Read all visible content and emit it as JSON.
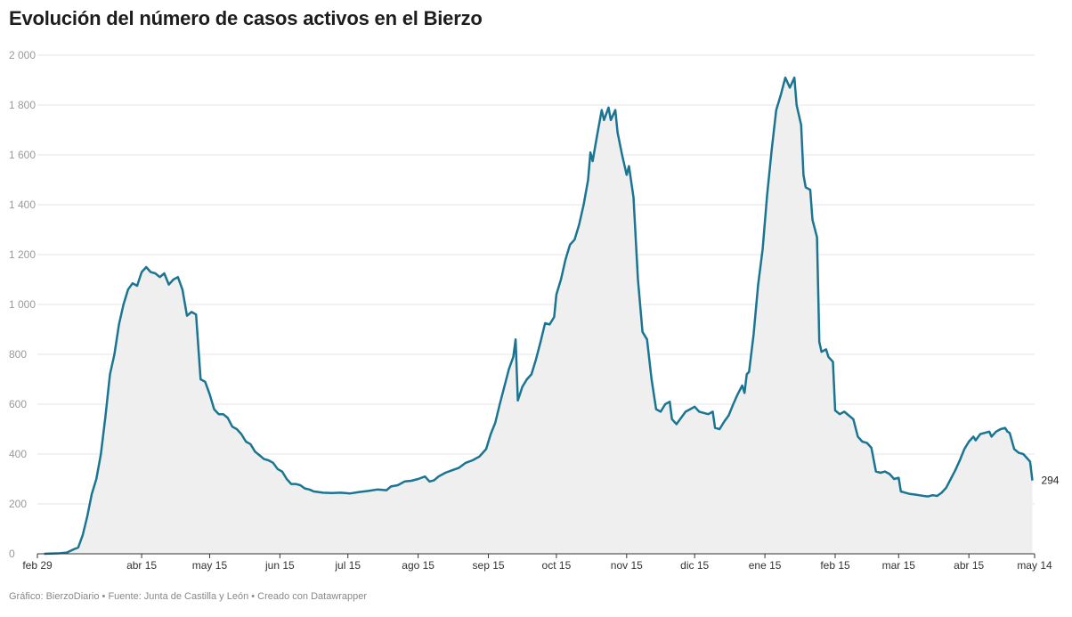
{
  "header": {
    "title": "Evolución del número de casos activos en el Bierzo"
  },
  "footer": {
    "text": "Gráfico: BierzoDiario • Fuente: Junta de Castilla y León • Creado con Datawrapper"
  },
  "colors": {
    "line": "#1a7592",
    "area": "#efefef",
    "grid": "#e4e4e4",
    "axis": "#333333"
  },
  "chart_data": {
    "type": "area",
    "title": "Evolución del número de casos activos en el Bierzo",
    "xlabel": "",
    "ylabel": "",
    "ylim": [
      0,
      2000
    ],
    "xlim": [
      "2020-02-29",
      "2021-05-14"
    ],
    "y_ticks": [
      0,
      200,
      400,
      600,
      800,
      1000,
      1200,
      1400,
      1600,
      1800,
      2000
    ],
    "y_tick_labels": [
      "0",
      "200",
      "400",
      "600",
      "800",
      "1 000",
      "1 200",
      "1 400",
      "1 600",
      "1 800",
      "2 000"
    ],
    "x_ticks": [
      "2020-02-29",
      "2020-04-15",
      "2020-05-15",
      "2020-06-15",
      "2020-07-15",
      "2020-08-15",
      "2020-09-15",
      "2020-10-15",
      "2020-11-15",
      "2020-12-15",
      "2021-01-15",
      "2021-02-15",
      "2021-03-15",
      "2021-04-15",
      "2021-05-14"
    ],
    "x_tick_labels": [
      "feb 29",
      "abr 15",
      "may 15",
      "jun 15",
      "jul 15",
      "ago 15",
      "sep 15",
      "oct 15",
      "nov 15",
      "dic 15",
      "ene 15",
      "feb 15",
      "mar 15",
      "abr 15",
      "may 14"
    ],
    "grid": true,
    "end_label": "294",
    "series": [
      {
        "points": [
          [
            "2020-03-03",
            0
          ],
          [
            "2020-03-10",
            2
          ],
          [
            "2020-03-13",
            5
          ],
          [
            "2020-03-16",
            18
          ],
          [
            "2020-03-18",
            25
          ],
          [
            "2020-03-20",
            75
          ],
          [
            "2020-03-22",
            150
          ],
          [
            "2020-03-24",
            240
          ],
          [
            "2020-03-26",
            300
          ],
          [
            "2020-03-28",
            400
          ],
          [
            "2020-03-30",
            550
          ],
          [
            "2020-04-01",
            720
          ],
          [
            "2020-04-03",
            800
          ],
          [
            "2020-04-05",
            920
          ],
          [
            "2020-04-07",
            1000
          ],
          [
            "2020-04-09",
            1060
          ],
          [
            "2020-04-11",
            1085
          ],
          [
            "2020-04-13",
            1075
          ],
          [
            "2020-04-15",
            1130
          ],
          [
            "2020-04-17",
            1150
          ],
          [
            "2020-04-19",
            1130
          ],
          [
            "2020-04-21",
            1125
          ],
          [
            "2020-04-23",
            1110
          ],
          [
            "2020-04-25",
            1125
          ],
          [
            "2020-04-27",
            1080
          ],
          [
            "2020-04-29",
            1100
          ],
          [
            "2020-05-01",
            1110
          ],
          [
            "2020-05-03",
            1060
          ],
          [
            "2020-05-05",
            955
          ],
          [
            "2020-05-07",
            970
          ],
          [
            "2020-05-09",
            960
          ],
          [
            "2020-05-11",
            700
          ],
          [
            "2020-05-13",
            690
          ],
          [
            "2020-05-15",
            640
          ],
          [
            "2020-05-17",
            580
          ],
          [
            "2020-05-19",
            560
          ],
          [
            "2020-05-21",
            560
          ],
          [
            "2020-05-23",
            545
          ],
          [
            "2020-05-25",
            510
          ],
          [
            "2020-05-27",
            500
          ],
          [
            "2020-05-29",
            480
          ],
          [
            "2020-05-31",
            450
          ],
          [
            "2020-06-02",
            440
          ],
          [
            "2020-06-04",
            410
          ],
          [
            "2020-06-06",
            395
          ],
          [
            "2020-06-08",
            380
          ],
          [
            "2020-06-10",
            375
          ],
          [
            "2020-06-12",
            365
          ],
          [
            "2020-06-14",
            340
          ],
          [
            "2020-06-16",
            330
          ],
          [
            "2020-06-18",
            300
          ],
          [
            "2020-06-20",
            280
          ],
          [
            "2020-06-22",
            280
          ],
          [
            "2020-06-24",
            275
          ],
          [
            "2020-06-26",
            262
          ],
          [
            "2020-06-28",
            258
          ],
          [
            "2020-06-30",
            250
          ],
          [
            "2020-07-02",
            248
          ],
          [
            "2020-07-04",
            245
          ],
          [
            "2020-07-08",
            244
          ],
          [
            "2020-07-12",
            245
          ],
          [
            "2020-07-16",
            242
          ],
          [
            "2020-07-20",
            248
          ],
          [
            "2020-07-24",
            252
          ],
          [
            "2020-07-28",
            258
          ],
          [
            "2020-08-01",
            255
          ],
          [
            "2020-08-03",
            270
          ],
          [
            "2020-08-06",
            275
          ],
          [
            "2020-08-09",
            290
          ],
          [
            "2020-08-12",
            293
          ],
          [
            "2020-08-15",
            300
          ],
          [
            "2020-08-18",
            310
          ],
          [
            "2020-08-20",
            290
          ],
          [
            "2020-08-22",
            295
          ],
          [
            "2020-08-24",
            310
          ],
          [
            "2020-08-27",
            325
          ],
          [
            "2020-08-30",
            335
          ],
          [
            "2020-09-02",
            345
          ],
          [
            "2020-09-05",
            365
          ],
          [
            "2020-09-08",
            375
          ],
          [
            "2020-09-11",
            390
          ],
          [
            "2020-09-14",
            420
          ],
          [
            "2020-09-16",
            480
          ],
          [
            "2020-09-18",
            525
          ],
          [
            "2020-09-20",
            600
          ],
          [
            "2020-09-22",
            670
          ],
          [
            "2020-09-24",
            740
          ],
          [
            "2020-09-26",
            790
          ],
          [
            "2020-09-27",
            860
          ],
          [
            "2020-09-28",
            615
          ],
          [
            "2020-09-30",
            670
          ],
          [
            "2020-10-02",
            700
          ],
          [
            "2020-10-04",
            720
          ],
          [
            "2020-10-06",
            780
          ],
          [
            "2020-10-08",
            850
          ],
          [
            "2020-10-10",
            925
          ],
          [
            "2020-10-12",
            920
          ],
          [
            "2020-10-14",
            950
          ],
          [
            "2020-10-15",
            1040
          ],
          [
            "2020-10-17",
            1100
          ],
          [
            "2020-10-19",
            1180
          ],
          [
            "2020-10-21",
            1240
          ],
          [
            "2020-10-23",
            1260
          ],
          [
            "2020-10-25",
            1320
          ],
          [
            "2020-10-27",
            1400
          ],
          [
            "2020-10-29",
            1500
          ],
          [
            "2020-10-30",
            1610
          ],
          [
            "2020-10-31",
            1575
          ],
          [
            "2020-11-02",
            1680
          ],
          [
            "2020-11-04",
            1780
          ],
          [
            "2020-11-05",
            1740
          ],
          [
            "2020-11-07",
            1790
          ],
          [
            "2020-11-08",
            1740
          ],
          [
            "2020-11-10",
            1780
          ],
          [
            "2020-11-11",
            1690
          ],
          [
            "2020-11-13",
            1600
          ],
          [
            "2020-11-15",
            1520
          ],
          [
            "2020-11-16",
            1555
          ],
          [
            "2020-11-18",
            1430
          ],
          [
            "2020-11-20",
            1100
          ],
          [
            "2020-11-22",
            890
          ],
          [
            "2020-11-24",
            860
          ],
          [
            "2020-11-26",
            700
          ],
          [
            "2020-11-28",
            580
          ],
          [
            "2020-11-30",
            570
          ],
          [
            "2020-12-02",
            600
          ],
          [
            "2020-12-04",
            610
          ],
          [
            "2020-12-05",
            540
          ],
          [
            "2020-12-07",
            520
          ],
          [
            "2020-12-09",
            545
          ],
          [
            "2020-12-11",
            570
          ],
          [
            "2020-12-13",
            580
          ],
          [
            "2020-12-15",
            590
          ],
          [
            "2020-12-17",
            570
          ],
          [
            "2020-12-19",
            565
          ],
          [
            "2020-12-21",
            560
          ],
          [
            "2020-12-23",
            570
          ],
          [
            "2020-12-24",
            505
          ],
          [
            "2020-12-26",
            500
          ],
          [
            "2020-12-28",
            530
          ],
          [
            "2020-12-30",
            555
          ],
          [
            "2021-01-01",
            600
          ],
          [
            "2021-01-03",
            640
          ],
          [
            "2021-01-05",
            675
          ],
          [
            "2021-01-06",
            645
          ],
          [
            "2021-01-07",
            720
          ],
          [
            "2021-01-08",
            730
          ],
          [
            "2021-01-10",
            880
          ],
          [
            "2021-01-12",
            1080
          ],
          [
            "2021-01-14",
            1220
          ],
          [
            "2021-01-16",
            1440
          ],
          [
            "2021-01-18",
            1620
          ],
          [
            "2021-01-20",
            1780
          ],
          [
            "2021-01-22",
            1840
          ],
          [
            "2021-01-24",
            1910
          ],
          [
            "2021-01-26",
            1870
          ],
          [
            "2021-01-28",
            1910
          ],
          [
            "2021-01-29",
            1800
          ],
          [
            "2021-01-31",
            1720
          ],
          [
            "2021-02-01",
            1520
          ],
          [
            "2021-02-02",
            1470
          ],
          [
            "2021-02-04",
            1460
          ],
          [
            "2021-02-05",
            1340
          ],
          [
            "2021-02-07",
            1270
          ],
          [
            "2021-02-08",
            850
          ],
          [
            "2021-02-09",
            810
          ],
          [
            "2021-02-11",
            820
          ],
          [
            "2021-02-12",
            790
          ],
          [
            "2021-02-14",
            770
          ],
          [
            "2021-02-15",
            575
          ],
          [
            "2021-02-17",
            560
          ],
          [
            "2021-02-19",
            570
          ],
          [
            "2021-02-21",
            555
          ],
          [
            "2021-02-23",
            540
          ],
          [
            "2021-02-25",
            470
          ],
          [
            "2021-02-27",
            450
          ],
          [
            "2021-03-01",
            445
          ],
          [
            "2021-03-03",
            425
          ],
          [
            "2021-03-05",
            330
          ],
          [
            "2021-03-07",
            325
          ],
          [
            "2021-03-09",
            330
          ],
          [
            "2021-03-11",
            320
          ],
          [
            "2021-03-13",
            300
          ],
          [
            "2021-03-15",
            305
          ],
          [
            "2021-03-16",
            250
          ],
          [
            "2021-03-18",
            245
          ],
          [
            "2021-03-20",
            240
          ],
          [
            "2021-03-22",
            238
          ],
          [
            "2021-03-24",
            235
          ],
          [
            "2021-03-26",
            232
          ],
          [
            "2021-03-28",
            230
          ],
          [
            "2021-03-30",
            235
          ],
          [
            "2021-04-01",
            232
          ],
          [
            "2021-04-03",
            245
          ],
          [
            "2021-04-05",
            265
          ],
          [
            "2021-04-07",
            300
          ],
          [
            "2021-04-09",
            335
          ],
          [
            "2021-04-11",
            375
          ],
          [
            "2021-04-13",
            420
          ],
          [
            "2021-04-15",
            450
          ],
          [
            "2021-04-17",
            470
          ],
          [
            "2021-04-18",
            455
          ],
          [
            "2021-04-20",
            480
          ],
          [
            "2021-04-22",
            485
          ],
          [
            "2021-04-24",
            490
          ],
          [
            "2021-04-25",
            470
          ],
          [
            "2021-04-27",
            490
          ],
          [
            "2021-04-29",
            500
          ],
          [
            "2021-05-01",
            505
          ],
          [
            "2021-05-02",
            490
          ],
          [
            "2021-05-03",
            485
          ],
          [
            "2021-05-05",
            420
          ],
          [
            "2021-05-07",
            405
          ],
          [
            "2021-05-09",
            400
          ],
          [
            "2021-05-11",
            380
          ],
          [
            "2021-05-12",
            370
          ],
          [
            "2021-05-13",
            294
          ]
        ]
      }
    ]
  }
}
